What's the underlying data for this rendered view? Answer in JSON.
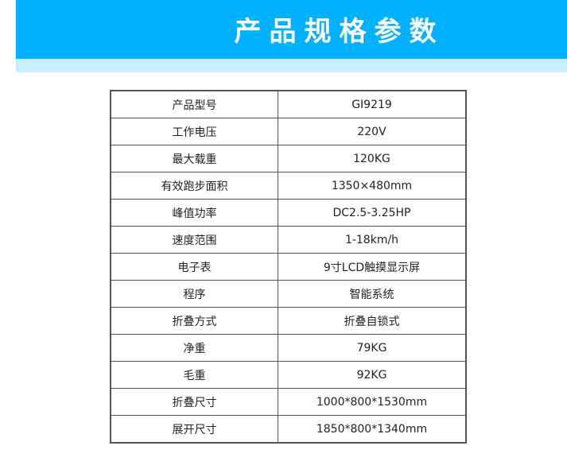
{
  "header": {
    "title": "产品规格参数"
  },
  "colors": {
    "banner": "#02b1fd",
    "band": "#c9eefd"
  },
  "specs": [
    {
      "label": "产品型号",
      "value": "GI9219"
    },
    {
      "label": "工作电压",
      "value": "220V"
    },
    {
      "label": "最大载重",
      "value": "120KG"
    },
    {
      "label": "有效跑步面积",
      "value": "1350×480mm"
    },
    {
      "label": "峰值功率",
      "value": "DC2.5-3.25HP"
    },
    {
      "label": "速度范围",
      "value": "1-18km/h"
    },
    {
      "label": "电子表",
      "value": "9寸LCD触摸显示屏"
    },
    {
      "label": "程序",
      "value": "智能系统"
    },
    {
      "label": "折叠方式",
      "value": "折叠自锁式"
    },
    {
      "label": "净重",
      "value": "79KG"
    },
    {
      "label": "毛重",
      "value": "92KG"
    },
    {
      "label": "折叠尺寸",
      "value": "1000*800*1530mm"
    },
    {
      "label": "展开尺寸",
      "value": "1850*800*1340mm"
    }
  ]
}
